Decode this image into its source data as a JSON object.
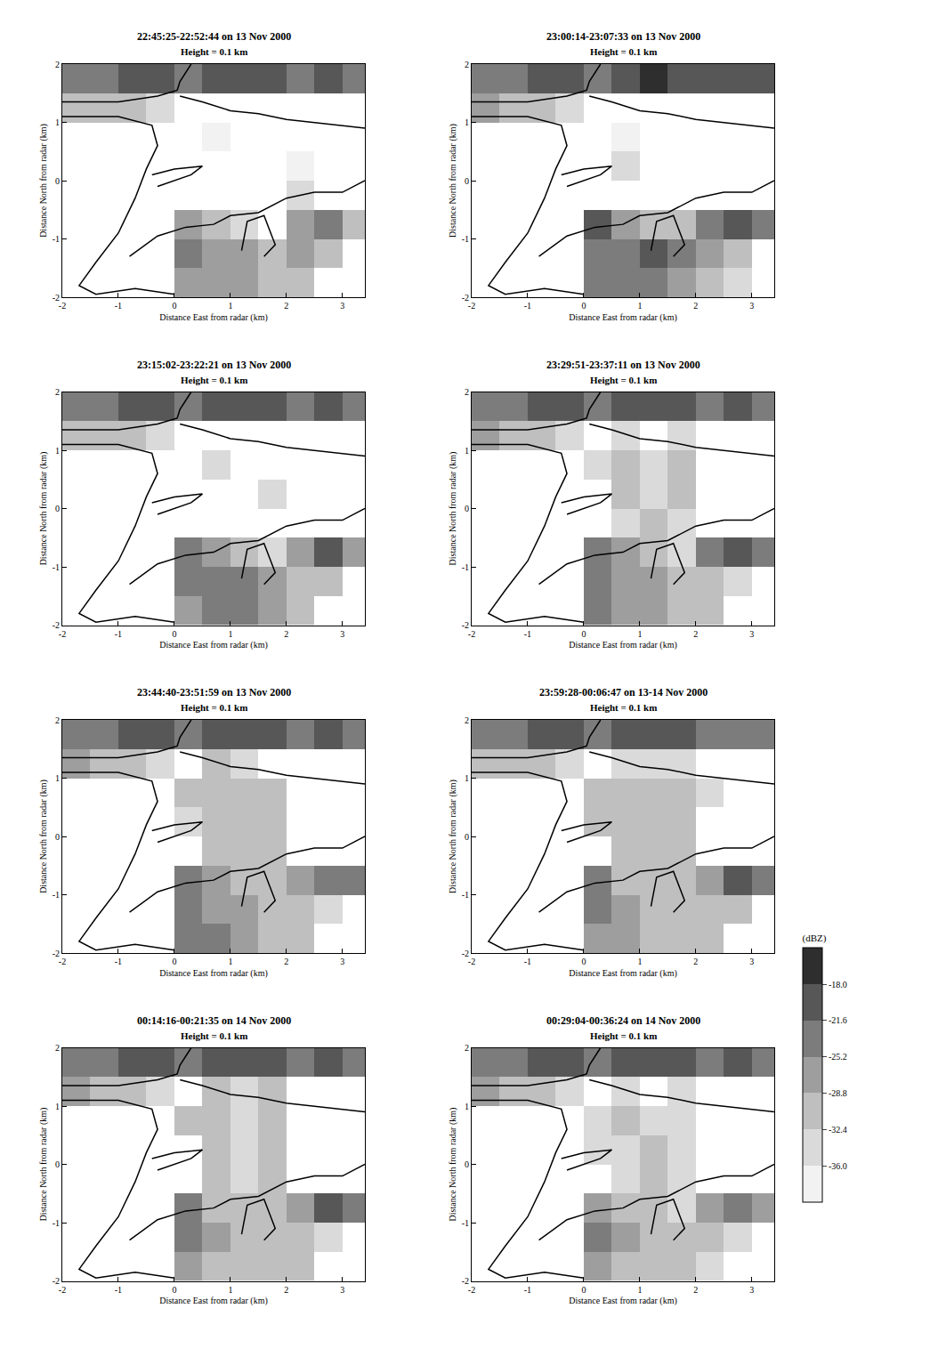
{
  "chart_data": {
    "type": "heatmap",
    "xlabel": "Distance East from radar (km)",
    "ylabel": "Distance North from radar (km)",
    "xlim": [
      -2,
      3.4
    ],
    "ylim": [
      -2,
      2
    ],
    "xticks": [
      -2,
      -1,
      0,
      1,
      2,
      3
    ],
    "yticks": [
      -2,
      -1,
      0,
      1,
      2
    ],
    "x": [
      -1.75,
      -1.25,
      -0.75,
      -0.25,
      0.25,
      0.75,
      1.25,
      1.75,
      2.25,
      2.75,
      3.25
    ],
    "y": [
      -1.75,
      -1.25,
      -0.75,
      -0.25,
      0.25,
      0.75,
      1.25,
      1.75
    ],
    "colorbar": {
      "title": "(dBZ)",
      "range": [
        -39.6,
        -14.4
      ],
      "ticks": [
        {
          "value": -18,
          "label": "-18.0"
        },
        {
          "value": -21.6,
          "label": "-21.6"
        },
        {
          "value": -25.2,
          "label": "-25.2"
        },
        {
          "value": -28.8,
          "label": "-28.8"
        },
        {
          "value": -32.4,
          "label": "-32.4"
        },
        {
          "value": -36,
          "label": "-36.0"
        }
      ]
    },
    "coastlines": [
      {
        "x": [
          -2,
          -1,
          -0.3,
          0.05,
          0.1,
          0.2,
          0.3
        ],
        "y": [
          1.35,
          1.35,
          1.45,
          1.55,
          1.7,
          1.85,
          2
        ]
      },
      {
        "x": [
          0.1,
          0.5,
          1,
          1.5,
          2,
          2.5,
          3,
          3.4
        ],
        "y": [
          1.45,
          1.35,
          1.2,
          1.15,
          1.05,
          1,
          0.95,
          0.9
        ]
      },
      {
        "x": [
          -2,
          -1,
          -0.4,
          -0.3,
          -0.5,
          -0.7,
          -1,
          -1.4,
          -1.7,
          -1.4,
          -0.7,
          0
        ],
        "y": [
          1.1,
          1.1,
          0.95,
          0.6,
          0.2,
          -0.3,
          -0.9,
          -1.4,
          -1.8,
          -1.95,
          -1.85,
          -1.95
        ]
      },
      {
        "x": [
          -0.8,
          -0.3,
          0.2,
          0.7,
          1,
          1.5,
          2,
          2.5,
          3,
          3.4
        ],
        "y": [
          -1.3,
          -0.95,
          -0.8,
          -0.75,
          -0.6,
          -0.55,
          -0.3,
          -0.2,
          -0.2,
          0
        ]
      },
      {
        "x": [
          -0.4,
          0,
          0.5,
          0.3,
          -0.3
        ],
        "y": [
          0.1,
          0.2,
          0.25,
          0.1,
          -0.1
        ]
      },
      {
        "x": [
          1.2,
          1.3,
          1.6,
          1.8,
          1.6
        ],
        "y": [
          -1.2,
          -0.7,
          -0.6,
          -1.1,
          -1.3
        ]
      }
    ],
    "panels": [
      {
        "title": "22:45:25-22:52:44 on 13 Nov 2000",
        "subtitle": "Height = 0.1 km",
        "z": [
          [
            null,
            null,
            null,
            null,
            -27,
            -28,
            -27,
            -30,
            -31,
            null,
            null
          ],
          [
            null,
            null,
            null,
            null,
            -24,
            -27,
            -28,
            -29,
            -28,
            -31,
            null
          ],
          [
            null,
            null,
            null,
            null,
            -28,
            -31,
            -33,
            null,
            -26,
            -24,
            -29
          ],
          [
            null,
            null,
            null,
            null,
            null,
            null,
            null,
            null,
            -35,
            null,
            null
          ],
          [
            null,
            null,
            null,
            null,
            null,
            null,
            null,
            null,
            -37,
            null,
            null
          ],
          [
            null,
            null,
            null,
            null,
            null,
            -37,
            null,
            null,
            null,
            null,
            null
          ],
          [
            -29,
            -31,
            -32,
            -33,
            null,
            null,
            null,
            null,
            null,
            null,
            null
          ],
          [
            -24,
            -23,
            -21,
            -21,
            -24,
            -20,
            -19,
            -21,
            -22,
            -20,
            -22
          ]
        ]
      },
      {
        "title": "23:00:14-23:07:33 on 13 Nov 2000",
        "subtitle": "Height = 0.1 km",
        "z": [
          [
            null,
            null,
            null,
            null,
            -25,
            -23,
            -22,
            -27,
            -29,
            -33,
            null
          ],
          [
            null,
            null,
            null,
            null,
            -22,
            -24,
            -20,
            -25,
            -28,
            -31,
            null
          ],
          [
            null,
            null,
            null,
            null,
            -21,
            -27,
            -29,
            -32,
            -25,
            -19,
            -23
          ],
          [
            null,
            null,
            null,
            null,
            null,
            null,
            null,
            null,
            null,
            null,
            null
          ],
          [
            null,
            null,
            null,
            null,
            null,
            -34,
            null,
            null,
            null,
            null,
            null
          ],
          [
            null,
            null,
            null,
            null,
            null,
            -37,
            null,
            null,
            null,
            null,
            null
          ],
          [
            -28,
            -30,
            -31,
            -33,
            null,
            null,
            null,
            null,
            null,
            null,
            null
          ],
          [
            -23,
            -22,
            -21,
            -20,
            -22,
            -19,
            -18,
            -20,
            -21,
            -20,
            -21
          ]
        ]
      },
      {
        "title": "23:15:02-23:22:21 on 13 Nov 2000",
        "subtitle": "Height = 0.1 km",
        "z": [
          [
            null,
            null,
            null,
            null,
            -26,
            -25,
            -23,
            -28,
            -29,
            null,
            null
          ],
          [
            null,
            null,
            null,
            null,
            -23,
            -25,
            -22,
            -26,
            -30,
            -32,
            null
          ],
          [
            null,
            null,
            null,
            null,
            -24,
            -28,
            -30,
            -33,
            -27,
            -21,
            -26
          ],
          [
            null,
            null,
            null,
            null,
            null,
            null,
            null,
            null,
            null,
            null,
            null
          ],
          [
            null,
            null,
            null,
            null,
            null,
            null,
            null,
            -35,
            null,
            null,
            null
          ],
          [
            null,
            null,
            null,
            null,
            null,
            -33,
            null,
            null,
            null,
            null,
            null
          ],
          [
            -29,
            -31,
            -32,
            -34,
            null,
            null,
            null,
            null,
            null,
            null,
            null
          ],
          [
            -24,
            -22,
            -21,
            -21,
            -23,
            -20,
            -19,
            -21,
            -22,
            -21,
            -23
          ]
        ]
      },
      {
        "title": "23:29:51-23:37:11 on 13 Nov 2000",
        "subtitle": "Height = 0.1 km",
        "z": [
          [
            null,
            null,
            null,
            null,
            -25,
            -26,
            -27,
            -31,
            -32,
            null,
            null
          ],
          [
            null,
            null,
            null,
            null,
            -23,
            -26,
            -28,
            -30,
            -31,
            -33,
            null
          ],
          [
            null,
            null,
            null,
            null,
            -22,
            -28,
            -31,
            -33,
            -25,
            -20,
            -24
          ],
          [
            null,
            null,
            null,
            null,
            null,
            -33,
            -32,
            -33,
            null,
            null,
            null
          ],
          [
            null,
            null,
            null,
            null,
            null,
            -32,
            -33,
            -32,
            null,
            null,
            null
          ],
          [
            null,
            null,
            null,
            null,
            -34,
            -31,
            -33,
            -31,
            null,
            null,
            null
          ],
          [
            -28,
            -30,
            -31,
            -33,
            null,
            -33,
            null,
            -34,
            null,
            null,
            null
          ],
          [
            -24,
            -22,
            -21,
            -20,
            -23,
            -20,
            -19,
            -21,
            -22,
            -20,
            -22
          ]
        ]
      },
      {
        "title": "23:44:40-23:51:59 on 13 Nov 2000",
        "subtitle": "Height = 0.1 km",
        "z": [
          [
            null,
            null,
            null,
            null,
            -24,
            -25,
            -28,
            -30,
            -32,
            null,
            null
          ],
          [
            null,
            null,
            null,
            null,
            -22,
            -26,
            -28,
            -30,
            -31,
            -33,
            null
          ],
          [
            null,
            null,
            null,
            null,
            -23,
            -28,
            -30,
            -32,
            -26,
            -22,
            -25
          ],
          [
            null,
            null,
            null,
            null,
            null,
            -31,
            -32,
            -31,
            null,
            null,
            null
          ],
          [
            null,
            null,
            null,
            null,
            -33,
            -30,
            -31,
            -32,
            null,
            null,
            null
          ],
          [
            null,
            null,
            null,
            null,
            -31,
            -30,
            -32,
            -31,
            null,
            null,
            null
          ],
          [
            -28,
            -30,
            -31,
            -33,
            null,
            -32,
            -33,
            null,
            null,
            null,
            null
          ],
          [
            -23,
            -22,
            -21,
            -20,
            -22,
            -20,
            -19,
            -21,
            -22,
            -21,
            -22
          ]
        ]
      },
      {
        "title": "23:59:28-00:06:47 on 13-14 Nov 2000",
        "subtitle": "Height = 0.1 km",
        "z": [
          [
            null,
            null,
            null,
            null,
            -26,
            -28,
            -29,
            -30,
            -32,
            null,
            null
          ],
          [
            null,
            null,
            null,
            null,
            -23,
            -28,
            -29,
            -30,
            -31,
            -32,
            null
          ],
          [
            null,
            null,
            null,
            null,
            -22,
            -29,
            -31,
            -32,
            -27,
            -21,
            -24
          ],
          [
            null,
            null,
            null,
            null,
            null,
            -31,
            -32,
            -31,
            null,
            null,
            null
          ],
          [
            null,
            null,
            null,
            null,
            -32,
            -31,
            -32,
            -31,
            null,
            null,
            null
          ],
          [
            null,
            null,
            null,
            null,
            -31,
            -32,
            -31,
            -32,
            -33,
            null,
            null
          ],
          [
            -29,
            -30,
            -31,
            -33,
            null,
            -33,
            -34,
            -33,
            null,
            null,
            null
          ],
          [
            -23,
            -22,
            -21,
            -20,
            -22,
            -20,
            -19,
            -21,
            -22,
            -22,
            -23
          ]
        ]
      },
      {
        "title": "00:14:16-00:21:35 on 14 Nov 2000",
        "subtitle": "Height = 0.1 km",
        "z": [
          [
            null,
            null,
            null,
            null,
            -27,
            -29,
            -30,
            -31,
            -32,
            null,
            null
          ],
          [
            null,
            null,
            null,
            null,
            -23,
            -28,
            -29,
            -30,
            -31,
            -33,
            null
          ],
          [
            null,
            null,
            null,
            null,
            -24,
            -29,
            -31,
            -32,
            -27,
            -21,
            -25
          ],
          [
            null,
            null,
            null,
            null,
            null,
            -32,
            -33,
            -31,
            null,
            null,
            null
          ],
          [
            null,
            null,
            null,
            null,
            null,
            -32,
            -33,
            -31,
            null,
            null,
            null
          ],
          [
            null,
            null,
            null,
            null,
            -32,
            -31,
            -33,
            -31,
            null,
            null,
            null
          ],
          [
            -28,
            -30,
            -31,
            -33,
            null,
            -32,
            -34,
            -32,
            null,
            null,
            null
          ],
          [
            -23,
            -22,
            -21,
            -20,
            -22,
            -20,
            -19,
            -21,
            -22,
            -21,
            -22
          ]
        ]
      },
      {
        "title": "00:29:04-00:36:24 on 14 Nov 2000",
        "subtitle": "Height = 0.1 km",
        "z": [
          [
            null,
            null,
            null,
            null,
            -28,
            -29,
            -31,
            -32,
            -33,
            null,
            null
          ],
          [
            null,
            null,
            null,
            null,
            -25,
            -28,
            -30,
            -31,
            -32,
            -33,
            null
          ],
          [
            null,
            null,
            null,
            null,
            -26,
            -30,
            -32,
            -33,
            -27,
            -22,
            -26
          ],
          [
            null,
            null,
            null,
            null,
            null,
            -33,
            -32,
            -33,
            null,
            null,
            null
          ],
          [
            null,
            null,
            null,
            null,
            -34,
            -33,
            -32,
            -33,
            null,
            null,
            null
          ],
          [
            null,
            null,
            null,
            null,
            -33,
            -32,
            -34,
            -33,
            null,
            null,
            null
          ],
          [
            -28,
            -30,
            -31,
            -33,
            null,
            -33,
            null,
            -34,
            null,
            null,
            null
          ],
          [
            -23,
            -22,
            -21,
            -20,
            -22,
            -20,
            -19,
            -21,
            -22,
            -21,
            -23
          ]
        ]
      }
    ]
  }
}
